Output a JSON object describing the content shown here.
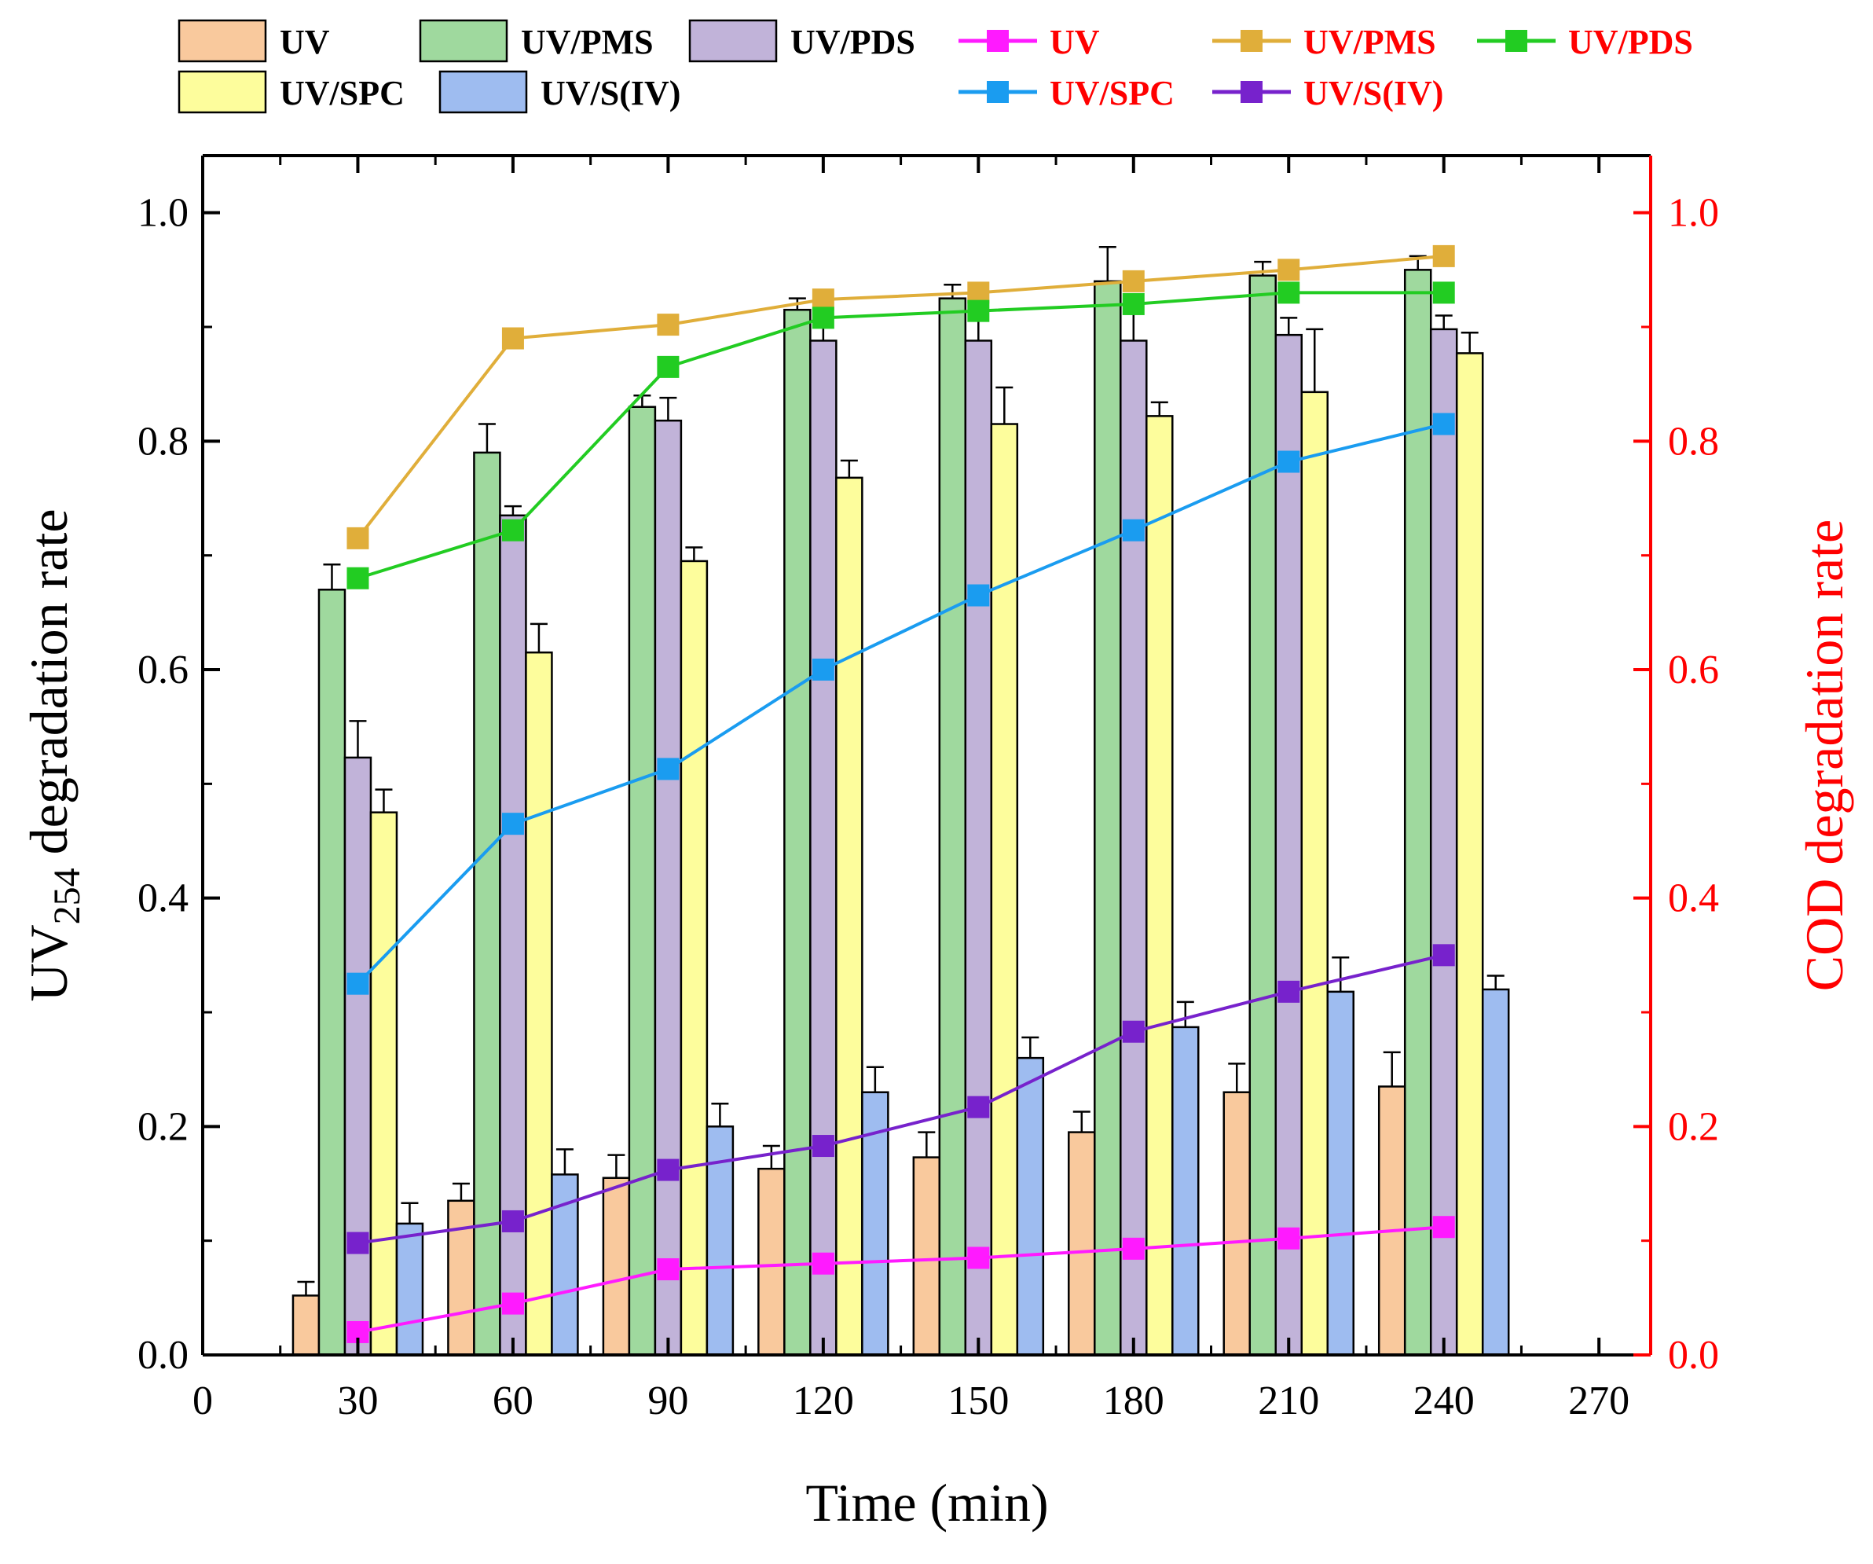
{
  "chart_data": {
    "type": "bar+line",
    "x_axis": {
      "label": "Time (min)",
      "range": [
        0,
        280
      ],
      "ticks": [
        0,
        30,
        60,
        90,
        120,
        150,
        180,
        210,
        240,
        270
      ]
    },
    "y_left": {
      "label_main": "UV",
      "label_sub": "254",
      "label_rest": " degradation rate",
      "range": [
        0.0,
        1.05
      ],
      "ticks": [
        "0.0",
        "0.2",
        "0.4",
        "0.6",
        "0.8",
        "1.0"
      ]
    },
    "y_right": {
      "label": "COD degradation rate",
      "range": [
        0.0,
        1.05
      ],
      "ticks": [
        "0.0",
        "0.2",
        "0.4",
        "0.6",
        "0.8",
        "1.0"
      ],
      "color": "#ff0000"
    },
    "times": [
      30,
      60,
      90,
      120,
      150,
      180,
      210,
      240
    ],
    "bar_series": [
      {
        "name": "UV",
        "color": "#f9c99d",
        "values": [
          0.052,
          0.135,
          0.155,
          0.163,
          0.173,
          0.195,
          0.23,
          0.235
        ],
        "errors": [
          0.012,
          0.015,
          0.02,
          0.02,
          0.022,
          0.018,
          0.025,
          0.03
        ]
      },
      {
        "name": "UV/PMS",
        "color": "#9fd99e",
        "values": [
          0.67,
          0.79,
          0.83,
          0.915,
          0.925,
          0.94,
          0.945,
          0.95
        ],
        "errors": [
          0.022,
          0.025,
          0.01,
          0.01,
          0.012,
          0.03,
          0.012,
          0.012
        ]
      },
      {
        "name": "UV/PDS",
        "color": "#c1b3d9",
        "values": [
          0.523,
          0.735,
          0.818,
          0.888,
          0.888,
          0.888,
          0.893,
          0.898
        ],
        "errors": [
          0.032,
          0.008,
          0.02,
          0.015,
          0.02,
          0.025,
          0.015,
          0.012
        ]
      },
      {
        "name": "UV/SPC",
        "color": "#fdfd9c",
        "values": [
          0.475,
          0.615,
          0.695,
          0.768,
          0.815,
          0.822,
          0.843,
          0.877
        ],
        "errors": [
          0.02,
          0.025,
          0.012,
          0.015,
          0.032,
          0.012,
          0.055,
          0.018
        ]
      },
      {
        "name": "UV/S(IV)",
        "color": "#9ebcf0",
        "values": [
          0.115,
          0.158,
          0.2,
          0.23,
          0.26,
          0.287,
          0.318,
          0.32
        ],
        "errors": [
          0.018,
          0.022,
          0.02,
          0.022,
          0.018,
          0.022,
          0.03,
          0.012
        ]
      }
    ],
    "line_series": [
      {
        "name": "UV",
        "color": "#ff1aff",
        "values": [
          0.02,
          0.045,
          0.075,
          0.08,
          0.085,
          0.093,
          0.102,
          0.112
        ]
      },
      {
        "name": "UV/PMS",
        "color": "#e0ae3a",
        "values": [
          0.715,
          0.89,
          0.902,
          0.924,
          0.93,
          0.94,
          0.95,
          0.962
        ]
      },
      {
        "name": "UV/PDS",
        "color": "#22cc22",
        "values": [
          0.68,
          0.722,
          0.865,
          0.908,
          0.914,
          0.92,
          0.93,
          0.93
        ]
      },
      {
        "name": "UV/SPC",
        "color": "#1a9cf0",
        "values": [
          0.325,
          0.465,
          0.513,
          0.6,
          0.665,
          0.722,
          0.782,
          0.815
        ]
      },
      {
        "name": "UV/S(IV)",
        "color": "#7722cc",
        "values": [
          0.098,
          0.117,
          0.162,
          0.183,
          0.217,
          0.283,
          0.318,
          0.35
        ]
      }
    ],
    "legend": {
      "bars_row1": [
        "UV",
        "UV/PMS",
        "UV/PDS"
      ],
      "bars_row2": [
        "UV/SPC",
        "UV/S(IV)"
      ],
      "lines_row1": [
        "UV",
        "UV/PMS",
        "UV/PDS"
      ],
      "lines_row2": [
        "UV/SPC",
        "UV/S(IV)"
      ],
      "placement": "top"
    }
  }
}
